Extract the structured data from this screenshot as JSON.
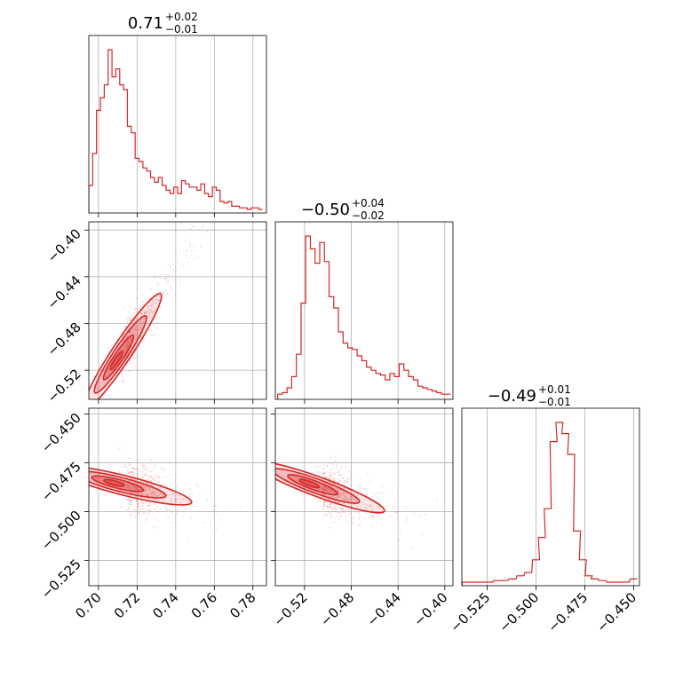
{
  "chart_data": {
    "type": "corner",
    "color": "#d62728",
    "grid": true,
    "parameters": [
      {
        "median": "0.71",
        "plus": "+0.02",
        "minus": "−0.01",
        "range": [
          0.695,
          0.787
        ],
        "ticks": [
          {
            "v": 0.7,
            "label": "0.70"
          },
          {
            "v": 0.72,
            "label": "0.72"
          },
          {
            "v": 0.74,
            "label": "0.74"
          },
          {
            "v": 0.76,
            "label": "0.76"
          },
          {
            "v": 0.78,
            "label": "0.78"
          }
        ]
      },
      {
        "median": "−0.50",
        "plus": "+0.04",
        "minus": "−0.02",
        "range": [
          -0.545,
          -0.393
        ],
        "ticks": [
          {
            "v": -0.52,
            "label": "−0.52"
          },
          {
            "v": -0.48,
            "label": "−0.48"
          },
          {
            "v": -0.44,
            "label": "−0.44"
          },
          {
            "v": -0.4,
            "label": "−0.40"
          }
        ]
      },
      {
        "median": "−0.49",
        "plus": "+0.01",
        "minus": "−0.01",
        "range": [
          -0.538,
          -0.447
        ],
        "ticks": [
          {
            "v": -0.525,
            "label": "−0.525"
          },
          {
            "v": -0.5,
            "label": "−0.500"
          },
          {
            "v": -0.475,
            "label": "−0.475"
          },
          {
            "v": -0.45,
            "label": "−0.450"
          }
        ]
      }
    ],
    "histograms": [
      {
        "x": [
          0.696,
          0.698,
          0.7,
          0.702,
          0.704,
          0.706,
          0.708,
          0.71,
          0.712,
          0.714,
          0.716,
          0.718,
          0.72,
          0.722,
          0.724,
          0.726,
          0.728,
          0.73,
          0.732,
          0.734,
          0.736,
          0.738,
          0.74,
          0.742,
          0.744,
          0.746,
          0.748,
          0.75,
          0.752,
          0.754,
          0.756,
          0.758,
          0.76,
          0.762,
          0.764,
          0.766,
          0.768,
          0.77,
          0.772,
          0.774,
          0.776,
          0.778,
          0.78,
          0.782,
          0.784
        ],
        "y": [
          0.15,
          0.35,
          0.62,
          0.7,
          0.78,
          1.0,
          0.83,
          0.88,
          0.78,
          0.75,
          0.52,
          0.48,
          0.32,
          0.3,
          0.26,
          0.24,
          0.2,
          0.17,
          0.2,
          0.15,
          0.12,
          0.1,
          0.14,
          0.1,
          0.18,
          0.16,
          0.14,
          0.14,
          0.12,
          0.16,
          0.1,
          0.08,
          0.14,
          0.12,
          0.05,
          0.04,
          0.05,
          0.02,
          0.02,
          0.01,
          0.01,
          0.0,
          0.01,
          0.01,
          0.0
        ]
      },
      {
        "x": [
          -0.541,
          -0.537,
          -0.533,
          -0.529,
          -0.525,
          -0.521,
          -0.517,
          -0.513,
          -0.509,
          -0.505,
          -0.501,
          -0.497,
          -0.493,
          -0.489,
          -0.485,
          -0.481,
          -0.477,
          -0.473,
          -0.469,
          -0.465,
          -0.461,
          -0.457,
          -0.453,
          -0.449,
          -0.445,
          -0.441,
          -0.437,
          -0.433,
          -0.429,
          -0.425,
          -0.421,
          -0.417,
          -0.413,
          -0.409,
          -0.405,
          -0.401,
          -0.397
        ],
        "y": [
          0.01,
          0.02,
          0.05,
          0.12,
          0.26,
          0.58,
          1.0,
          0.92,
          0.83,
          0.96,
          0.84,
          0.62,
          0.55,
          0.4,
          0.33,
          0.3,
          0.29,
          0.25,
          0.22,
          0.18,
          0.16,
          0.14,
          0.13,
          0.1,
          0.14,
          0.12,
          0.2,
          0.16,
          0.12,
          0.1,
          0.06,
          0.05,
          0.04,
          0.03,
          0.02,
          0.01,
          0.01
        ]
      },
      {
        "x": [
          -0.536,
          -0.532,
          -0.528,
          -0.524,
          -0.52,
          -0.516,
          -0.512,
          -0.508,
          -0.504,
          -0.5,
          -0.497,
          -0.494,
          -0.491,
          -0.488,
          -0.485,
          -0.482,
          -0.479,
          -0.476,
          -0.473,
          -0.47,
          -0.466,
          -0.462,
          -0.458,
          -0.454,
          -0.45
        ],
        "y": [
          0.0,
          0.0,
          0.0,
          0.0,
          0.01,
          0.01,
          0.02,
          0.04,
          0.06,
          0.14,
          0.28,
          0.46,
          0.88,
          1.0,
          0.93,
          0.8,
          0.32,
          0.14,
          0.04,
          0.02,
          0.01,
          0.0,
          0.0,
          0.0,
          0.02
        ]
      }
    ],
    "correlations": [
      {
        "pair": [
          0,
          1
        ],
        "centre": [
          0.712,
          -0.505
        ],
        "slope": 2.5
      },
      {
        "pair": [
          0,
          2
        ],
        "centre": [
          0.715,
          -0.487
        ],
        "slope": -0.25
      },
      {
        "pair": [
          1,
          2
        ],
        "centre": [
          -0.505,
          -0.488
        ],
        "slope": -0.22
      }
    ]
  }
}
